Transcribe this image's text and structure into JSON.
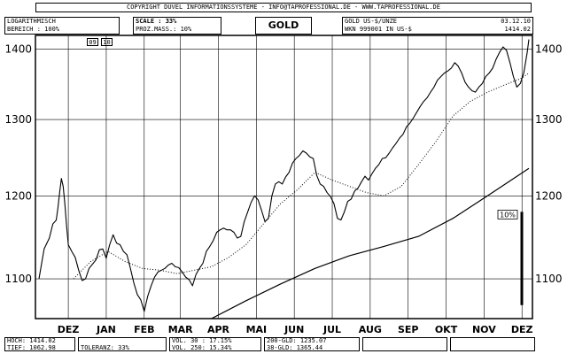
{
  "header": {
    "copyright": "COPYRIGHT  DUVEL INFORMATIONSSYSTEME - INFO@TAPROFESSIONAL.DE - WWW.TAPROFESSIONAL.DE",
    "scale_type": "LOGARITHMISCH",
    "range": "BEREICH  :  100%",
    "scale": "SCALE : 33%",
    "proz_mass": "PROZ.MASS.:  10%",
    "title": "GOLD",
    "instrument": "GOLD US-$/UNZE",
    "wkn": "WKN 999001   IN US-$",
    "date": "03.12.10",
    "last_price": "1414.02",
    "small_label_1": "09",
    "small_label_2": "10"
  },
  "footer": {
    "hoch": "HOCH: 1414.02",
    "tief": "TIEF: 1062.98",
    "toleranz": "TOLERANZ: 33%",
    "vol30": "VOL. 30 : 17.15%",
    "vol250": "VOL. 250: 15.34%",
    "gld200": "200-GLD: 1235.07",
    "gld38": "38-GLD: 1365.44"
  },
  "chart_data": {
    "type": "line",
    "ylim": [
      1055,
      1420
    ],
    "yscale": "log",
    "grid": true,
    "y_ticks": [
      1100,
      1200,
      1300,
      1400
    ],
    "y_tick_labels": [
      "1100",
      "1200",
      "1300",
      "1400"
    ],
    "x_ticks": [
      {
        "label": "DEZ",
        "idx": 17
      },
      {
        "label": "JAN",
        "idx": 39
      },
      {
        "label": "FEB",
        "idx": 61
      },
      {
        "label": "MAR",
        "idx": 82
      },
      {
        "label": "APR",
        "idx": 104
      },
      {
        "label": "MAI",
        "idx": 126
      },
      {
        "label": "JUN",
        "idx": 148
      },
      {
        "label": "JUL",
        "idx": 170
      },
      {
        "label": "AUG",
        "idx": 192
      },
      {
        "label": "SEP",
        "idx": 214
      },
      {
        "label": "OKT",
        "idx": 236
      },
      {
        "label": "NOV",
        "idx": 258
      },
      {
        "label": "DEZ",
        "idx": 280
      }
    ],
    "n_points": 285,
    "series": [
      {
        "name": "Gold",
        "style": "solid",
        "keypoints": [
          [
            0,
            1100
          ],
          [
            3,
            1135
          ],
          [
            6,
            1148
          ],
          [
            8,
            1165
          ],
          [
            10,
            1170
          ],
          [
            11,
            1185
          ],
          [
            12,
            1205
          ],
          [
            13,
            1222
          ],
          [
            14,
            1212
          ],
          [
            15,
            1190
          ],
          [
            16,
            1162
          ],
          [
            17,
            1140
          ],
          [
            19,
            1132
          ],
          [
            21,
            1125
          ],
          [
            23,
            1110
          ],
          [
            25,
            1098
          ],
          [
            27,
            1100
          ],
          [
            29,
            1112
          ],
          [
            31,
            1117
          ],
          [
            33,
            1122
          ],
          [
            35,
            1134
          ],
          [
            37,
            1135
          ],
          [
            39,
            1124
          ],
          [
            41,
            1140
          ],
          [
            43,
            1152
          ],
          [
            45,
            1142
          ],
          [
            47,
            1140
          ],
          [
            49,
            1132
          ],
          [
            51,
            1128
          ],
          [
            53,
            1112
          ],
          [
            55,
            1095
          ],
          [
            57,
            1082
          ],
          [
            59,
            1076
          ],
          [
            61,
            1063
          ],
          [
            63,
            1080
          ],
          [
            65,
            1092
          ],
          [
            67,
            1102
          ],
          [
            69,
            1108
          ],
          [
            71,
            1110
          ],
          [
            73,
            1112
          ],
          [
            75,
            1116
          ],
          [
            77,
            1118
          ],
          [
            79,
            1114
          ],
          [
            81,
            1113
          ],
          [
            83,
            1108
          ],
          [
            85,
            1102
          ],
          [
            87,
            1099
          ],
          [
            89,
            1092
          ],
          [
            91,
            1105
          ],
          [
            93,
            1112
          ],
          [
            95,
            1118
          ],
          [
            97,
            1132
          ],
          [
            99,
            1138
          ],
          [
            101,
            1145
          ],
          [
            103,
            1155
          ],
          [
            105,
            1158
          ],
          [
            107,
            1160
          ],
          [
            109,
            1158
          ],
          [
            111,
            1158
          ],
          [
            113,
            1155
          ],
          [
            115,
            1148
          ],
          [
            117,
            1150
          ],
          [
            119,
            1168
          ],
          [
            121,
            1180
          ],
          [
            123,
            1192
          ],
          [
            125,
            1200
          ],
          [
            127,
            1195
          ],
          [
            129,
            1182
          ],
          [
            131,
            1168
          ],
          [
            133,
            1172
          ],
          [
            135,
            1200
          ],
          [
            137,
            1215
          ],
          [
            139,
            1218
          ],
          [
            141,
            1215
          ],
          [
            143,
            1224
          ],
          [
            145,
            1230
          ],
          [
            147,
            1242
          ],
          [
            149,
            1248
          ],
          [
            151,
            1252
          ],
          [
            153,
            1258
          ],
          [
            155,
            1255
          ],
          [
            157,
            1250
          ],
          [
            159,
            1248
          ],
          [
            161,
            1226
          ],
          [
            163,
            1215
          ],
          [
            165,
            1212
          ],
          [
            167,
            1204
          ],
          [
            169,
            1199
          ],
          [
            171,
            1190
          ],
          [
            173,
            1172
          ],
          [
            175,
            1170
          ],
          [
            177,
            1180
          ],
          [
            179,
            1193
          ],
          [
            181,
            1196
          ],
          [
            183,
            1206
          ],
          [
            185,
            1210
          ],
          [
            187,
            1218
          ],
          [
            189,
            1225
          ],
          [
            191,
            1220
          ],
          [
            193,
            1228
          ],
          [
            195,
            1235
          ],
          [
            197,
            1240
          ],
          [
            199,
            1248
          ],
          [
            201,
            1249
          ],
          [
            203,
            1255
          ],
          [
            205,
            1262
          ],
          [
            207,
            1268
          ],
          [
            209,
            1275
          ],
          [
            211,
            1280
          ],
          [
            213,
            1290
          ],
          [
            215,
            1295
          ],
          [
            217,
            1302
          ],
          [
            219,
            1310
          ],
          [
            221,
            1318
          ],
          [
            223,
            1325
          ],
          [
            225,
            1330
          ],
          [
            227,
            1338
          ],
          [
            229,
            1345
          ],
          [
            231,
            1355
          ],
          [
            233,
            1360
          ],
          [
            235,
            1365
          ],
          [
            237,
            1368
          ],
          [
            239,
            1372
          ],
          [
            241,
            1380
          ],
          [
            243,
            1375
          ],
          [
            245,
            1365
          ],
          [
            247,
            1352
          ],
          [
            249,
            1345
          ],
          [
            251,
            1340
          ],
          [
            253,
            1338
          ],
          [
            255,
            1345
          ],
          [
            257,
            1350
          ],
          [
            259,
            1360
          ],
          [
            261,
            1365
          ],
          [
            263,
            1372
          ],
          [
            265,
            1385
          ],
          [
            267,
            1395
          ],
          [
            269,
            1403
          ],
          [
            271,
            1398
          ],
          [
            273,
            1380
          ],
          [
            275,
            1360
          ],
          [
            277,
            1345
          ],
          [
            279,
            1350
          ],
          [
            281,
            1365
          ],
          [
            283,
            1395
          ],
          [
            284,
            1414
          ]
        ]
      },
      {
        "name": "38-GLD",
        "style": "dotted",
        "keypoints": [
          [
            20,
            1100
          ],
          [
            30,
            1120
          ],
          [
            40,
            1132
          ],
          [
            50,
            1120
          ],
          [
            60,
            1112
          ],
          [
            70,
            1110
          ],
          [
            80,
            1106
          ],
          [
            90,
            1110
          ],
          [
            100,
            1114
          ],
          [
            110,
            1125
          ],
          [
            120,
            1140
          ],
          [
            130,
            1165
          ],
          [
            140,
            1190
          ],
          [
            150,
            1208
          ],
          [
            160,
            1230
          ],
          [
            170,
            1220
          ],
          [
            180,
            1212
          ],
          [
            190,
            1204
          ],
          [
            200,
            1200
          ],
          [
            210,
            1212
          ],
          [
            220,
            1240
          ],
          [
            230,
            1270
          ],
          [
            240,
            1305
          ],
          [
            250,
            1325
          ],
          [
            260,
            1338
          ],
          [
            270,
            1348
          ],
          [
            280,
            1358
          ],
          [
            284,
            1365
          ]
        ]
      },
      {
        "name": "200-GLD",
        "style": "solid",
        "keypoints": [
          [
            100,
            1055
          ],
          [
            120,
            1075
          ],
          [
            140,
            1094
          ],
          [
            160,
            1112
          ],
          [
            180,
            1127
          ],
          [
            200,
            1138
          ],
          [
            220,
            1150
          ],
          [
            240,
            1172
          ],
          [
            260,
            1200
          ],
          [
            284,
            1235
          ]
        ]
      }
    ],
    "scale_bar": {
      "label": "10%",
      "from": 1070,
      "to": 1180
    }
  }
}
